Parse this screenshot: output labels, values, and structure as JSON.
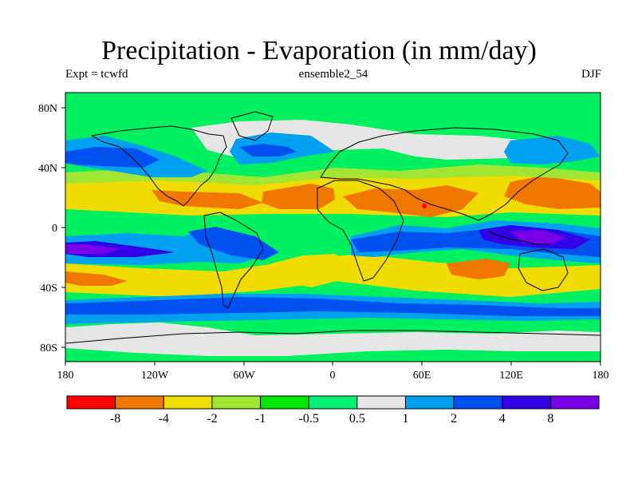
{
  "title": "Precipitation - Evaporation (in mm/day)",
  "subtitle_left": "Expt = tcwfd",
  "subtitle_center": "ensemble2_54",
  "subtitle_right": "DJF",
  "map": {
    "projection": "cylindrical equidistant",
    "lon_range": [
      -180,
      180
    ],
    "lat_range": [
      -90,
      90
    ],
    "background_color": "#00f060",
    "x_tick_labels": [
      "180",
      "120W",
      "60W",
      "0",
      "60E",
      "120E",
      "180"
    ],
    "y_tick_labels": [
      "80N",
      "40N",
      "0",
      "40S",
      "80S"
    ]
  },
  "colorbar": {
    "colors": [
      "#ff0000",
      "#f07800",
      "#f0dc00",
      "#a0e632",
      "#00e600",
      "#00f078",
      "#e6e6e6",
      "#00a0f0",
      "#0050f0",
      "#3200e6",
      "#7800e6"
    ],
    "labels": [
      "-8",
      "-4",
      "-2",
      "-1",
      "-0.5",
      "0.5",
      "1",
      "2",
      "4",
      "8"
    ]
  },
  "colors": {
    "coastline": "#000000",
    "frame": "#000000"
  }
}
